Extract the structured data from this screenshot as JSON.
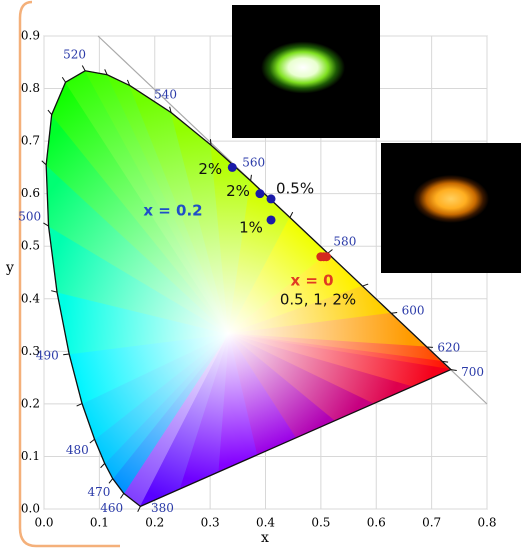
{
  "chart_data": {
    "type": "scatter",
    "xlabel": "x",
    "ylabel": "y",
    "xlim": [
      0,
      0.8
    ],
    "ylim": [
      0,
      0.9
    ],
    "xticks": [
      {
        "value": 0,
        "label": "0.0"
      },
      0.1,
      0.2,
      0.3,
      0.4,
      0.5,
      0.6,
      0.7,
      0.8
    ],
    "yticks": [
      {
        "value": 0,
        "label": "0.0"
      },
      0.1,
      0.2,
      0.3,
      0.4,
      0.5,
      0.6,
      0.7,
      0.8,
      0.9
    ],
    "grid": true,
    "locus": {
      "x": [
        0.1741,
        0.144,
        0.1241,
        0.1096,
        0.0913,
        0.0687,
        0.0454,
        0.0235,
        0.0082,
        0.0039,
        0.0139,
        0.0389,
        0.0743,
        0.1142,
        0.1547,
        0.2296,
        0.3016,
        0.3731,
        0.4441,
        0.5125,
        0.5752,
        0.627,
        0.6915,
        0.719,
        0.7347
      ],
      "y": [
        0.005,
        0.0297,
        0.0578,
        0.0868,
        0.1327,
        0.2007,
        0.295,
        0.4127,
        0.5384,
        0.6548,
        0.7502,
        0.812,
        0.8338,
        0.8262,
        0.8059,
        0.7543,
        0.6923,
        0.6245,
        0.5547,
        0.4866,
        0.4242,
        0.3725,
        0.3083,
        0.2809,
        0.2653
      ],
      "labels": [
        "380",
        "460",
        "470",
        null,
        "480",
        null,
        "490",
        null,
        "500",
        null,
        null,
        null,
        "520",
        null,
        null,
        "540",
        null,
        "560",
        null,
        "580",
        null,
        "600",
        "620",
        null,
        "700"
      ]
    },
    "series": [
      {
        "color": "#1a1aa8",
        "x": [
          0.34,
          0.39,
          0.41,
          0.41
        ],
        "y": [
          0.65,
          0.6,
          0.59,
          0.55
        ],
        "labels": [
          "2%",
          "2%",
          "0.5%",
          "1%"
        ]
      },
      {
        "color": "#d42a1e",
        "x": [
          0.5,
          0.505,
          0.51
        ],
        "y": [
          0.48,
          0.48,
          0.48
        ]
      }
    ],
    "annotations": [
      {
        "text": "x = 0.2",
        "color": "#1f4fc8"
      },
      {
        "text": "x = 0",
        "color": "#e03a22"
      },
      {
        "text": "0.5, 1, 2%",
        "color": "#111111"
      }
    ]
  }
}
